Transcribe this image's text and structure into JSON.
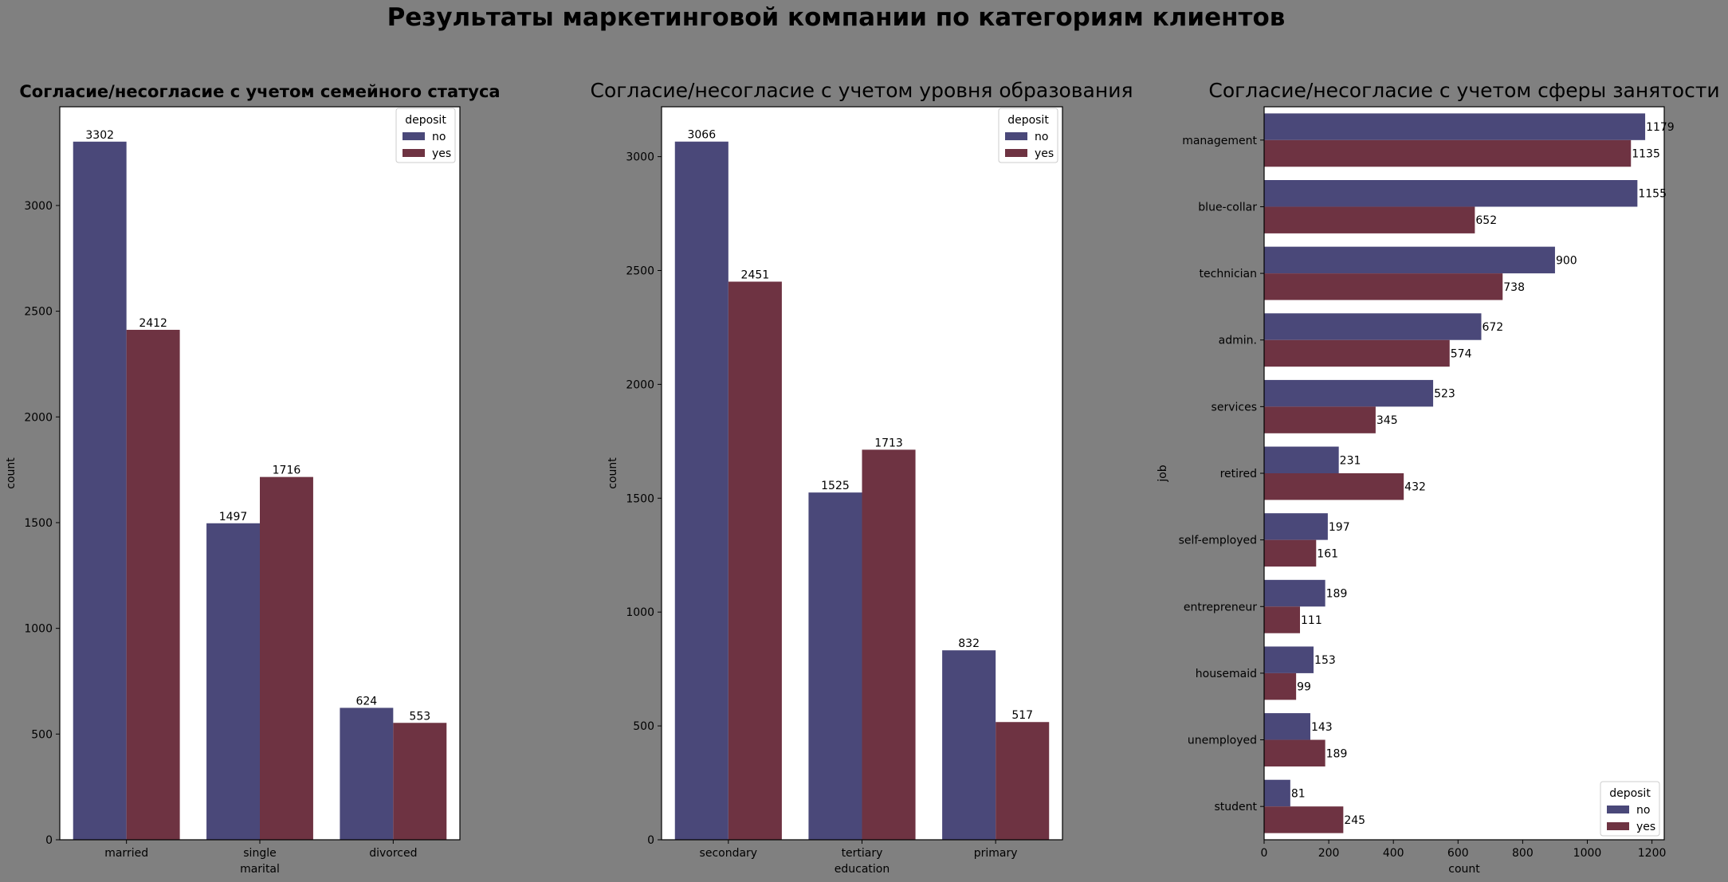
{
  "suptitle": "Результаты маркетинговой компании по категориям клиентов",
  "colors": {
    "no": "#4a4879",
    "yes": "#6e3342",
    "background": "#808080",
    "axes": "#ffffff"
  },
  "chart_data": [
    {
      "type": "bar",
      "orientation": "vertical",
      "title": "Согласие/несогласие с учетом семейного статуса",
      "xlabel": "marital",
      "ylabel": "count",
      "categories": [
        "married",
        "single",
        "divorced"
      ],
      "series": [
        {
          "name": "no",
          "values": [
            3302,
            1497,
            624
          ]
        },
        {
          "name": "yes",
          "values": [
            2412,
            1716,
            553
          ]
        }
      ],
      "ylim": [
        0,
        3467
      ],
      "ticks": [
        0,
        500,
        1000,
        1500,
        2000,
        2500,
        3000
      ],
      "legend_title": "deposit",
      "legend_position": "top-right",
      "grid": false
    },
    {
      "type": "bar",
      "orientation": "vertical",
      "title": "Согласие/несогласие с учетом уровня образования",
      "xlabel": "education",
      "ylabel": "count",
      "categories": [
        "secondary",
        "tertiary",
        "primary"
      ],
      "series": [
        {
          "name": "no",
          "values": [
            3066,
            1525,
            832
          ]
        },
        {
          "name": "yes",
          "values": [
            2451,
            1713,
            517
          ]
        }
      ],
      "ylim": [
        0,
        3219
      ],
      "ticks": [
        0,
        500,
        1000,
        1500,
        2000,
        2500,
        3000
      ],
      "legend_title": "deposit",
      "legend_position": "top-right",
      "grid": false
    },
    {
      "type": "bar",
      "orientation": "horizontal",
      "title": "Согласие/несогласие с учетом сферы занятости",
      "xlabel": "count",
      "ylabel": "job",
      "categories": [
        "management",
        "blue-collar",
        "technician",
        "admin.",
        "services",
        "retired",
        "self-employed",
        "entrepreneur",
        "housemaid",
        "unemployed",
        "student"
      ],
      "series": [
        {
          "name": "no",
          "values": [
            1179,
            1155,
            900,
            672,
            523,
            231,
            197,
            189,
            153,
            143,
            81
          ]
        },
        {
          "name": "yes",
          "values": [
            1135,
            652,
            738,
            574,
            345,
            432,
            161,
            111,
            99,
            189,
            245
          ]
        }
      ],
      "xlim": [
        0,
        1238
      ],
      "ticks": [
        0,
        200,
        400,
        600,
        800,
        1000,
        1200
      ],
      "legend_title": "deposit",
      "legend_position": "bottom-right",
      "grid": false
    }
  ]
}
